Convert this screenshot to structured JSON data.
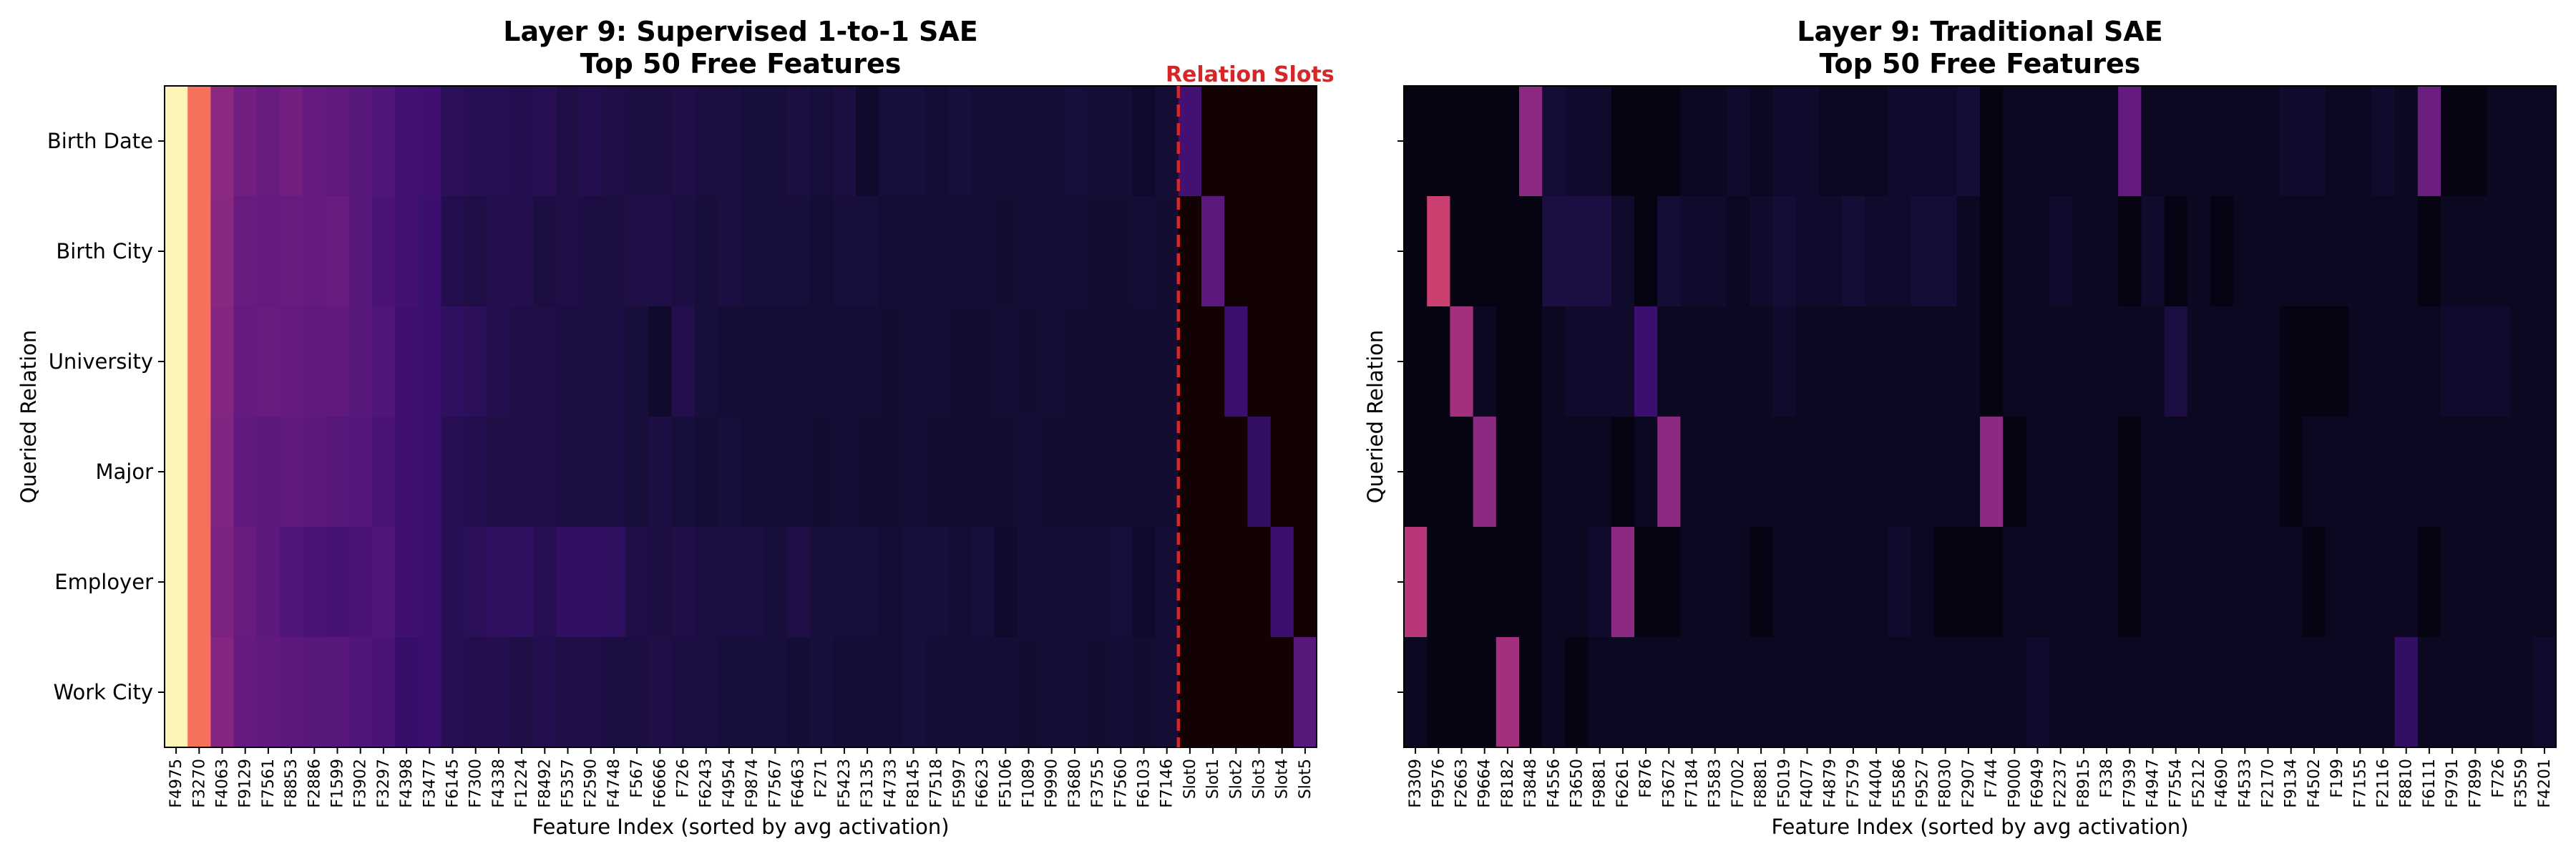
{
  "chart_data": [
    {
      "type": "heatmap",
      "title": "Layer 9: Supervised 1-to-1 SAE",
      "subtitle": "Top 50 Free Features",
      "xlabel": "Feature Index (sorted by avg activation)",
      "ylabel": "Queried Relation",
      "rows": [
        "Birth Date",
        "Birth City",
        "University",
        "Major",
        "Employer",
        "Work City"
      ],
      "columns": [
        "F4975",
        "F3270",
        "F4063",
        "F9129",
        "F7561",
        "F8853",
        "F2886",
        "F1599",
        "F3902",
        "F3297",
        "F4398",
        "F3477",
        "F6145",
        "F7300",
        "F4338",
        "F1224",
        "F8492",
        "F5357",
        "F2590",
        "F4748",
        "F567",
        "F6666",
        "F726",
        "F6243",
        "F4954",
        "F9874",
        "F7567",
        "F6463",
        "F271",
        "F5423",
        "F3135",
        "F4733",
        "F8145",
        "F7518",
        "F5997",
        "F6623",
        "F5106",
        "F1089",
        "F9990",
        "F3680",
        "F3755",
        "F7560",
        "F6103",
        "F7146",
        "Slot0",
        "Slot1",
        "Slot2",
        "Slot3",
        "Slot4",
        "Slot5"
      ],
      "divider_after_column": "F7146",
      "divider_label": "Relation Slots",
      "divider_color": "#d62728",
      "colormap": "magma",
      "value_range": [
        0,
        1
      ],
      "values": [
        [
          0.98,
          0.7,
          0.4,
          0.33,
          0.31,
          0.33,
          0.3,
          0.29,
          0.27,
          0.25,
          0.22,
          0.21,
          0.16,
          0.15,
          0.15,
          0.14,
          0.15,
          0.13,
          0.14,
          0.13,
          0.12,
          0.12,
          0.13,
          0.12,
          0.12,
          0.11,
          0.11,
          0.12,
          0.11,
          0.12,
          0.08,
          0.11,
          0.11,
          0.1,
          0.11,
          0.1,
          0.1,
          0.1,
          0.1,
          0.11,
          0.1,
          0.1,
          0.08,
          0.1,
          0.22,
          0.06,
          0.06,
          0.06,
          0.06,
          0.06
        ],
        [
          0.98,
          0.7,
          0.39,
          0.31,
          0.3,
          0.31,
          0.3,
          0.31,
          0.27,
          0.24,
          0.22,
          0.2,
          0.14,
          0.13,
          0.14,
          0.14,
          0.12,
          0.13,
          0.12,
          0.12,
          0.13,
          0.13,
          0.12,
          0.11,
          0.12,
          0.11,
          0.11,
          0.11,
          0.1,
          0.11,
          0.11,
          0.1,
          0.1,
          0.1,
          0.1,
          0.1,
          0.09,
          0.1,
          0.1,
          0.1,
          0.09,
          0.09,
          0.1,
          0.09,
          0.06,
          0.28,
          0.06,
          0.06,
          0.06,
          0.06
        ],
        [
          0.98,
          0.7,
          0.38,
          0.3,
          0.31,
          0.3,
          0.29,
          0.29,
          0.27,
          0.25,
          0.21,
          0.2,
          0.17,
          0.16,
          0.14,
          0.13,
          0.13,
          0.12,
          0.12,
          0.12,
          0.11,
          0.08,
          0.14,
          0.11,
          0.1,
          0.1,
          0.1,
          0.1,
          0.1,
          0.1,
          0.1,
          0.09,
          0.1,
          0.1,
          0.09,
          0.09,
          0.1,
          0.09,
          0.1,
          0.09,
          0.09,
          0.09,
          0.09,
          0.09,
          0.06,
          0.06,
          0.2,
          0.06,
          0.06,
          0.06
        ],
        [
          0.98,
          0.7,
          0.37,
          0.29,
          0.28,
          0.29,
          0.28,
          0.27,
          0.26,
          0.24,
          0.21,
          0.2,
          0.15,
          0.14,
          0.13,
          0.13,
          0.13,
          0.12,
          0.12,
          0.12,
          0.11,
          0.12,
          0.11,
          0.1,
          0.11,
          0.1,
          0.1,
          0.1,
          0.09,
          0.1,
          0.09,
          0.09,
          0.1,
          0.09,
          0.09,
          0.09,
          0.09,
          0.1,
          0.09,
          0.09,
          0.09,
          0.09,
          0.09,
          0.09,
          0.06,
          0.06,
          0.06,
          0.18,
          0.06,
          0.06
        ],
        [
          0.98,
          0.7,
          0.36,
          0.31,
          0.28,
          0.25,
          0.24,
          0.23,
          0.24,
          0.25,
          0.21,
          0.2,
          0.15,
          0.16,
          0.17,
          0.17,
          0.15,
          0.18,
          0.18,
          0.17,
          0.13,
          0.12,
          0.13,
          0.12,
          0.12,
          0.12,
          0.11,
          0.13,
          0.11,
          0.11,
          0.11,
          0.1,
          0.11,
          0.11,
          0.1,
          0.11,
          0.08,
          0.1,
          0.1,
          0.1,
          0.1,
          0.11,
          0.08,
          0.1,
          0.06,
          0.06,
          0.06,
          0.06,
          0.2,
          0.06
        ],
        [
          0.98,
          0.7,
          0.38,
          0.3,
          0.29,
          0.28,
          0.27,
          0.27,
          0.25,
          0.24,
          0.19,
          0.2,
          0.15,
          0.14,
          0.14,
          0.13,
          0.14,
          0.13,
          0.13,
          0.12,
          0.12,
          0.13,
          0.12,
          0.12,
          0.11,
          0.11,
          0.11,
          0.1,
          0.11,
          0.1,
          0.1,
          0.1,
          0.11,
          0.1,
          0.1,
          0.1,
          0.1,
          0.09,
          0.1,
          0.1,
          0.09,
          0.1,
          0.09,
          0.1,
          0.06,
          0.06,
          0.06,
          0.06,
          0.06,
          0.27
        ]
      ]
    },
    {
      "type": "heatmap",
      "title": "Layer 9: Traditional SAE",
      "subtitle": "Top 50 Free Features",
      "xlabel": "Feature Index (sorted by avg activation)",
      "ylabel": "Queried Relation",
      "rows": [
        "Birth Date",
        "Birth City",
        "University",
        "Major",
        "Employer",
        "Work City"
      ],
      "columns": [
        "F3309",
        "F9576",
        "F2663",
        "F9664",
        "F8182",
        "F3848",
        "F4556",
        "F3650",
        "F9881",
        "F6261",
        "F876",
        "F3672",
        "F7184",
        "F3583",
        "F7002",
        "F8881",
        "F5019",
        "F4077",
        "F4879",
        "F7579",
        "F4404",
        "F5586",
        "F9527",
        "F8030",
        "F2907",
        "F744",
        "F9000",
        "F6949",
        "F2237",
        "F8915",
        "F338",
        "F7939",
        "F4947",
        "F7554",
        "F5212",
        "F4690",
        "F4533",
        "F2170",
        "F9134",
        "F4502",
        "F199",
        "F7155",
        "F2116",
        "F8810",
        "F6111",
        "F9791",
        "F7899",
        "F726",
        "F3559",
        "F4201"
      ],
      "colormap": "magma",
      "value_range": [
        0,
        1
      ],
      "values": [
        [
          0.03,
          0.03,
          0.03,
          0.03,
          0.03,
          0.4,
          0.1,
          0.08,
          0.08,
          0.03,
          0.03,
          0.03,
          0.06,
          0.06,
          0.08,
          0.06,
          0.08,
          0.08,
          0.06,
          0.06,
          0.06,
          0.08,
          0.08,
          0.08,
          0.1,
          0.03,
          0.06,
          0.06,
          0.06,
          0.06,
          0.06,
          0.3,
          0.06,
          0.06,
          0.06,
          0.06,
          0.06,
          0.06,
          0.08,
          0.08,
          0.06,
          0.06,
          0.08,
          0.06,
          0.32,
          0.03,
          0.03,
          0.06,
          0.06,
          0.06
        ],
        [
          0.03,
          0.55,
          0.03,
          0.03,
          0.03,
          0.03,
          0.12,
          0.12,
          0.12,
          0.08,
          0.03,
          0.1,
          0.08,
          0.08,
          0.06,
          0.08,
          0.1,
          0.08,
          0.08,
          0.1,
          0.08,
          0.08,
          0.1,
          0.1,
          0.06,
          0.03,
          0.06,
          0.06,
          0.08,
          0.06,
          0.06,
          0.03,
          0.08,
          0.03,
          0.06,
          0.03,
          0.06,
          0.06,
          0.06,
          0.06,
          0.06,
          0.06,
          0.06,
          0.06,
          0.03,
          0.06,
          0.06,
          0.06,
          0.06,
          0.06
        ],
        [
          0.03,
          0.03,
          0.45,
          0.06,
          0.03,
          0.03,
          0.06,
          0.08,
          0.08,
          0.08,
          0.2,
          0.06,
          0.06,
          0.06,
          0.06,
          0.06,
          0.08,
          0.06,
          0.06,
          0.06,
          0.06,
          0.06,
          0.06,
          0.06,
          0.06,
          0.03,
          0.06,
          0.06,
          0.06,
          0.06,
          0.06,
          0.06,
          0.06,
          0.12,
          0.06,
          0.06,
          0.06,
          0.06,
          0.03,
          0.03,
          0.03,
          0.06,
          0.06,
          0.06,
          0.06,
          0.08,
          0.08,
          0.08,
          0.06,
          0.06
        ],
        [
          0.03,
          0.03,
          0.03,
          0.4,
          0.03,
          0.03,
          0.06,
          0.06,
          0.06,
          0.03,
          0.06,
          0.4,
          0.06,
          0.06,
          0.06,
          0.06,
          0.06,
          0.06,
          0.06,
          0.06,
          0.06,
          0.06,
          0.06,
          0.06,
          0.06,
          0.4,
          0.03,
          0.06,
          0.06,
          0.06,
          0.06,
          0.03,
          0.06,
          0.06,
          0.06,
          0.06,
          0.06,
          0.06,
          0.03,
          0.06,
          0.06,
          0.06,
          0.06,
          0.06,
          0.06,
          0.06,
          0.06,
          0.06,
          0.06,
          0.06
        ],
        [
          0.5,
          0.03,
          0.03,
          0.03,
          0.03,
          0.03,
          0.06,
          0.06,
          0.08,
          0.4,
          0.03,
          0.03,
          0.06,
          0.06,
          0.06,
          0.03,
          0.06,
          0.06,
          0.06,
          0.06,
          0.06,
          0.08,
          0.06,
          0.03,
          0.03,
          0.03,
          0.06,
          0.06,
          0.06,
          0.06,
          0.06,
          0.03,
          0.06,
          0.06,
          0.06,
          0.06,
          0.06,
          0.06,
          0.06,
          0.03,
          0.06,
          0.06,
          0.06,
          0.06,
          0.03,
          0.06,
          0.06,
          0.06,
          0.06,
          0.06
        ],
        [
          0.06,
          0.03,
          0.03,
          0.03,
          0.45,
          0.03,
          0.06,
          0.03,
          0.06,
          0.06,
          0.06,
          0.06,
          0.06,
          0.06,
          0.06,
          0.06,
          0.06,
          0.06,
          0.06,
          0.06,
          0.06,
          0.06,
          0.06,
          0.06,
          0.06,
          0.06,
          0.06,
          0.08,
          0.06,
          0.06,
          0.06,
          0.06,
          0.06,
          0.06,
          0.06,
          0.06,
          0.06,
          0.06,
          0.06,
          0.06,
          0.06,
          0.06,
          0.06,
          0.18,
          0.06,
          0.06,
          0.06,
          0.06,
          0.06,
          0.08
        ]
      ]
    }
  ]
}
